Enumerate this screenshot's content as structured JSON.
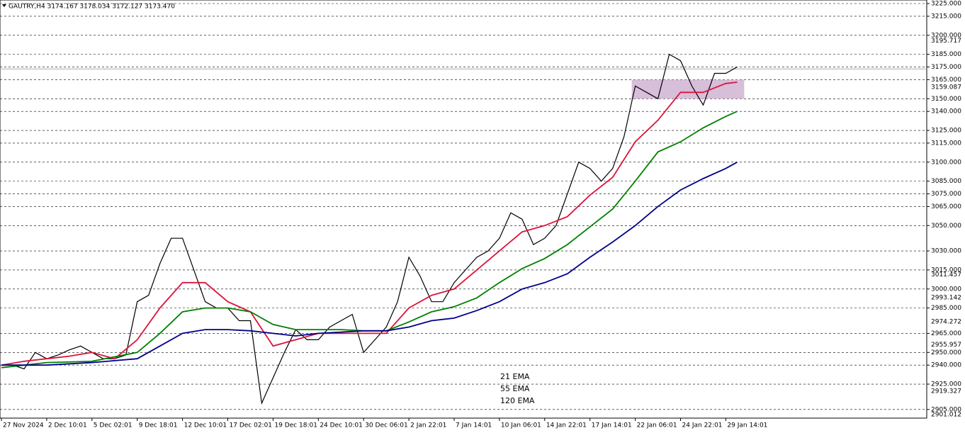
{
  "chart_data": {
    "type": "line",
    "title": "GAUTRY,H4  3174.167 3178.034 3172.127 3173.470",
    "xlim": [
      0,
      327
    ],
    "xticks": [
      {
        "value": 0,
        "label": "27 Nov 2024"
      },
      {
        "value": 16,
        "label": "2 Dec 10:01"
      },
      {
        "value": 32,
        "label": "5 Dec 02:01"
      },
      {
        "value": 48,
        "label": "9 Dec 18:01"
      },
      {
        "value": 64,
        "label": "12 Dec 10:01"
      },
      {
        "value": 80,
        "label": "17 Dec 02:01"
      },
      {
        "value": 96,
        "label": "19 Dec 18:01"
      },
      {
        "value": 112,
        "label": "24 Dec 10:01"
      },
      {
        "value": 128,
        "label": "30 Dec 06:01"
      },
      {
        "value": 144,
        "label": "2 Jan 22:01"
      },
      {
        "value": 160,
        "label": "7 Jan 14:01"
      },
      {
        "value": 176,
        "label": "10 Jan 06:01"
      },
      {
        "value": 192,
        "label": "14 Jan 22:01"
      },
      {
        "value": 208,
        "label": "17 Jan 14:01"
      },
      {
        "value": 224,
        "label": "22 Jan 06:01"
      },
      {
        "value": 240,
        "label": "24 Jan 22:01"
      },
      {
        "value": 256,
        "label": "29 Jan 14:01"
      }
    ],
    "ylim": [
      2898.2,
      3227.8
    ],
    "yticks": [
      {
        "value": 3225,
        "label": "3225.000"
      },
      {
        "value": 3215,
        "label": "3215.000"
      },
      {
        "value": 3200,
        "label": "3200.000"
      },
      {
        "value": 3185,
        "label": "3185.000"
      },
      {
        "value": 3175,
        "label": "3175.000"
      },
      {
        "value": 3165,
        "label": "3165.000"
      },
      {
        "value": 3150,
        "label": "3150.000"
      },
      {
        "value": 3140,
        "label": "3140.000"
      },
      {
        "value": 3125,
        "label": "3125.000"
      },
      {
        "value": 3115,
        "label": "3115.000"
      },
      {
        "value": 3100,
        "label": "3100.000"
      },
      {
        "value": 3085,
        "label": "3085.000"
      },
      {
        "value": 3075,
        "label": "3075.000"
      },
      {
        "value": 3065,
        "label": "3065.000"
      },
      {
        "value": 3050,
        "label": "3050.000"
      },
      {
        "value": 3030,
        "label": "3030.000"
      },
      {
        "value": 3015,
        "label": "3015.000"
      },
      {
        "value": 3000,
        "label": "3000.000"
      },
      {
        "value": 2985,
        "label": "2985.000"
      },
      {
        "value": 2965,
        "label": "2965.000"
      },
      {
        "value": 2950,
        "label": "2950.000"
      },
      {
        "value": 2940,
        "label": "2940.000"
      },
      {
        "value": 2925,
        "label": "2925.000"
      },
      {
        "value": 2905,
        "label": "2905.000"
      }
    ],
    "level_labels": [
      3195.717,
      3159.087,
      3011.457,
      2993.142,
      2974.272,
      2955.957,
      2919.327,
      2901.012
    ],
    "grid": true,
    "current_price": 3173.47,
    "zone": {
      "x": [
        222.75,
        262.5
      ],
      "y": [
        3150,
        3165
      ],
      "color": "#c9a8cc"
    },
    "series": [
      {
        "color": "#000000",
        "x": [
          0,
          4,
          8,
          12,
          16,
          20,
          24,
          28,
          32,
          36,
          40,
          44,
          48,
          52,
          56,
          60,
          64,
          68,
          72,
          76,
          80,
          84,
          88,
          92,
          96,
          100,
          104,
          108,
          112,
          116,
          120,
          124,
          128,
          132,
          136,
          140,
          144,
          148,
          152,
          156,
          160,
          164,
          168,
          172,
          176,
          180,
          184,
          188,
          192,
          196,
          200,
          204,
          208,
          212,
          216,
          220,
          224,
          228,
          232,
          236,
          240,
          244,
          248,
          252,
          256,
          260
        ],
        "values": [
          2940,
          2940,
          2937,
          2950,
          2945,
          2948,
          2952,
          2955,
          2950,
          2945,
          2945,
          2948,
          2990,
          2995,
          3020,
          3040,
          3040,
          3015,
          2990,
          2985,
          2985,
          2975,
          2975,
          2910,
          2930,
          2950,
          2968,
          2960,
          2960,
          2970,
          2975,
          2980,
          2950,
          2960,
          2970,
          2990,
          3025,
          3010,
          2990,
          2990,
          3005,
          3015,
          3025,
          3030,
          3040,
          3060,
          3055,
          3035,
          3040,
          3050,
          3075,
          3100,
          3095,
          3085,
          3095,
          3120,
          3160,
          3155,
          3150,
          3185,
          3180,
          3160,
          3145,
          3170,
          3170,
          3175
        ]
      },
      {
        "name": "21 EMA",
        "color": "#dc143c",
        "x": [
          0,
          8,
          16,
          24,
          32,
          40,
          48,
          56,
          64,
          72,
          80,
          88,
          96,
          104,
          112,
          120,
          128,
          136,
          144,
          152,
          160,
          168,
          176,
          184,
          192,
          200,
          208,
          216,
          224,
          232,
          240,
          248,
          256,
          260
        ],
        "values": [
          2940,
          2943,
          2945,
          2947,
          2950,
          2945,
          2960,
          2985,
          3005,
          3005,
          2990,
          2982,
          2955,
          2960,
          2965,
          2965,
          2965,
          2965,
          2985,
          2995,
          3000,
          3015,
          3030,
          3045,
          3050,
          3057,
          3074,
          3088,
          3116,
          3133,
          3155,
          3155,
          3162,
          3163
        ]
      },
      {
        "name": "55 EMA",
        "color": "#008000",
        "x": [
          0,
          16,
          32,
          48,
          56,
          64,
          72,
          80,
          88,
          96,
          104,
          112,
          120,
          128,
          136,
          144,
          152,
          160,
          168,
          176,
          184,
          192,
          200,
          208,
          216,
          224,
          232,
          240,
          248,
          256,
          260
        ],
        "values": [
          2938,
          2942,
          2943,
          2950,
          2965,
          2982,
          2985,
          2985,
          2982,
          2972,
          2968,
          2968,
          2968,
          2967,
          2967,
          2974,
          2982,
          2986,
          2993,
          3005,
          3016,
          3024,
          3035,
          3049,
          3063,
          3085,
          3108,
          3116,
          3127,
          3136,
          3140
        ]
      },
      {
        "name": "120 EMA",
        "color": "#00008b",
        "x": [
          0,
          16,
          32,
          48,
          56,
          64,
          72,
          80,
          88,
          96,
          104,
          112,
          120,
          128,
          136,
          144,
          152,
          160,
          168,
          176,
          184,
          192,
          200,
          208,
          216,
          224,
          232,
          240,
          248,
          256,
          260
        ],
        "values": [
          2940,
          2940,
          2942,
          2945,
          2955,
          2965,
          2968,
          2968,
          2967,
          2965,
          2963,
          2965,
          2966,
          2967,
          2967,
          2970,
          2975,
          2977,
          2983,
          2990,
          3000,
          3005,
          3012,
          3025,
          3037,
          3050,
          3065,
          3078,
          3087,
          3095,
          3100
        ]
      }
    ]
  }
}
